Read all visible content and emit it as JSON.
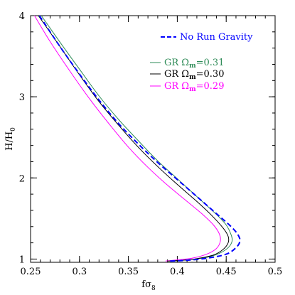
{
  "chart_data": {
    "type": "line",
    "xlabel": "fσ",
    "xlabel_sub": "8",
    "ylabel": "H/H",
    "ylabel_sub": "0",
    "xlim": [
      0.25,
      0.5
    ],
    "ylim": [
      0.96,
      4.0
    ],
    "x_ticks": [
      0.25,
      0.3,
      0.35,
      0.4,
      0.45,
      0.5
    ],
    "x_tick_labels": [
      "0.25",
      "0.3",
      "0.35",
      "0.4",
      "0.45",
      "0.5"
    ],
    "y_ticks": [
      1,
      2,
      3,
      4
    ],
    "y_tick_labels": [
      "1",
      "2",
      "3",
      "4"
    ],
    "legend_position": "top-right",
    "series": [
      {
        "name": "No Run Gravity",
        "color": "#0000ff",
        "style": "dashed",
        "points": [
          [
            0.259,
            4.0
          ],
          [
            0.28,
            3.62
          ],
          [
            0.3,
            3.28
          ],
          [
            0.32,
            2.96
          ],
          [
            0.34,
            2.67
          ],
          [
            0.36,
            2.42
          ],
          [
            0.38,
            2.19
          ],
          [
            0.4,
            1.98
          ],
          [
            0.42,
            1.77
          ],
          [
            0.44,
            1.56
          ],
          [
            0.455,
            1.4
          ],
          [
            0.462,
            1.3
          ],
          [
            0.464,
            1.22
          ],
          [
            0.46,
            1.14
          ],
          [
            0.45,
            1.06
          ],
          [
            0.43,
            1.01
          ],
          [
            0.41,
            0.985
          ],
          [
            0.392,
            0.975
          ]
        ]
      },
      {
        "name": "GR Ω",
        "name_sub": "m",
        "name_suffix": "=0.31",
        "color": "#2e8b57",
        "style": "solid",
        "points": [
          [
            0.261,
            4.0
          ],
          [
            0.282,
            3.64
          ],
          [
            0.3,
            3.34
          ],
          [
            0.32,
            3.01
          ],
          [
            0.34,
            2.72
          ],
          [
            0.36,
            2.46
          ],
          [
            0.38,
            2.21
          ],
          [
            0.4,
            1.99
          ],
          [
            0.42,
            1.77
          ],
          [
            0.44,
            1.55
          ],
          [
            0.45,
            1.42
          ],
          [
            0.455,
            1.3
          ],
          [
            0.456,
            1.22
          ],
          [
            0.452,
            1.14
          ],
          [
            0.443,
            1.07
          ],
          [
            0.43,
            1.02
          ],
          [
            0.41,
            0.99
          ],
          [
            0.395,
            0.975
          ]
        ]
      },
      {
        "name": "GR Ω",
        "name_sub": "m",
        "name_suffix": "=0.30",
        "color": "#000000",
        "style": "solid",
        "points": [
          [
            0.258,
            4.0
          ],
          [
            0.28,
            3.62
          ],
          [
            0.3,
            3.27
          ],
          [
            0.32,
            2.94
          ],
          [
            0.34,
            2.65
          ],
          [
            0.36,
            2.38
          ],
          [
            0.38,
            2.14
          ],
          [
            0.4,
            1.92
          ],
          [
            0.42,
            1.71
          ],
          [
            0.435,
            1.54
          ],
          [
            0.447,
            1.38
          ],
          [
            0.452,
            1.28
          ],
          [
            0.452,
            1.2
          ],
          [
            0.447,
            1.12
          ],
          [
            0.437,
            1.05
          ],
          [
            0.42,
            1.005
          ],
          [
            0.405,
            0.985
          ],
          [
            0.39,
            0.975
          ]
        ]
      },
      {
        "name": "GR Ω",
        "name_sub": "m",
        "name_suffix": "=0.29",
        "color": "#ff00ff",
        "style": "solid",
        "points": [
          [
            0.254,
            4.0
          ],
          [
            0.27,
            3.68
          ],
          [
            0.29,
            3.32
          ],
          [
            0.31,
            2.98
          ],
          [
            0.33,
            2.67
          ],
          [
            0.35,
            2.38
          ],
          [
            0.37,
            2.13
          ],
          [
            0.39,
            1.91
          ],
          [
            0.41,
            1.71
          ],
          [
            0.425,
            1.56
          ],
          [
            0.437,
            1.42
          ],
          [
            0.443,
            1.31
          ],
          [
            0.444,
            1.22
          ],
          [
            0.44,
            1.13
          ],
          [
            0.43,
            1.06
          ],
          [
            0.415,
            1.01
          ],
          [
            0.4,
            0.99
          ],
          [
            0.388,
            0.975
          ]
        ]
      }
    ]
  }
}
